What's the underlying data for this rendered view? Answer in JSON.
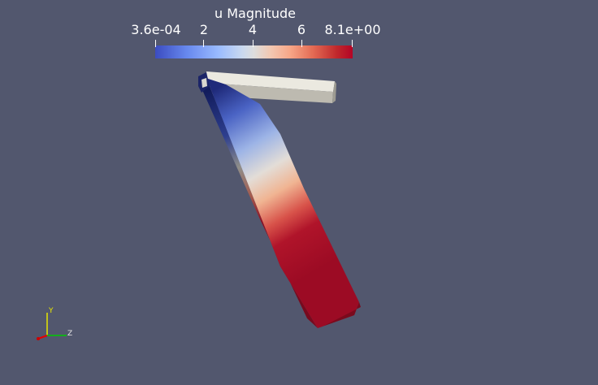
{
  "colorbar": {
    "title": "u Magnitude",
    "ticks": [
      {
        "label": "3.6e-04",
        "value": 0.00036
      },
      {
        "label": "2",
        "value": 2
      },
      {
        "label": "4",
        "value": 4
      },
      {
        "label": "6",
        "value": 6
      },
      {
        "label": "8.1e+00",
        "value": 8.1
      }
    ],
    "range": [
      0.00036,
      8.1
    ],
    "colormap": [
      "#3b4cc0",
      "#dddddd",
      "#b40426"
    ]
  },
  "axes": {
    "y_label": "Y",
    "z_label": "Z",
    "y_color": "#e6e600",
    "z_color": "#00cc00",
    "x_color": "#e60000"
  },
  "scene": {
    "background": "#52576e",
    "undeformed_color": "#e8e6dc",
    "deformed_colormap_field": "u Magnitude"
  }
}
